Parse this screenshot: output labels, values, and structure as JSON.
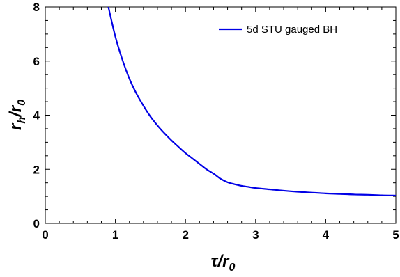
{
  "chart_data": {
    "type": "line",
    "title": "",
    "xlabel": {
      "main": "τ/r",
      "sub": "0"
    },
    "ylabel": {
      "main": "r",
      "sub1": "h",
      "mid": "/r",
      "sub2": "0"
    },
    "xlim": [
      0,
      5
    ],
    "ylim": [
      0,
      8
    ],
    "xticks": [
      0,
      1,
      2,
      3,
      4,
      5
    ],
    "yticks": [
      0,
      2,
      4,
      6,
      8
    ],
    "grid": false,
    "legend_position": "top-right",
    "series": [
      {
        "name": "5d STU gauged BH",
        "color": "#0000e6",
        "x": [
          0.9,
          1.0,
          1.1,
          1.2,
          1.3,
          1.4,
          1.5,
          1.6,
          1.7,
          1.8,
          1.9,
          2.0,
          2.1,
          2.2,
          2.3,
          2.4,
          2.5,
          2.6,
          2.7,
          2.8,
          2.9,
          3.0,
          3.2,
          3.4,
          3.6,
          3.8,
          4.0,
          4.2,
          4.4,
          4.6,
          4.8,
          5.0
        ],
        "y": [
          8.0,
          6.9,
          6.05,
          5.35,
          4.8,
          4.35,
          3.95,
          3.62,
          3.33,
          3.07,
          2.83,
          2.6,
          2.4,
          2.2,
          2.0,
          1.84,
          1.65,
          1.52,
          1.45,
          1.39,
          1.35,
          1.31,
          1.26,
          1.21,
          1.17,
          1.14,
          1.11,
          1.09,
          1.07,
          1.06,
          1.04,
          1.03
        ]
      }
    ]
  }
}
